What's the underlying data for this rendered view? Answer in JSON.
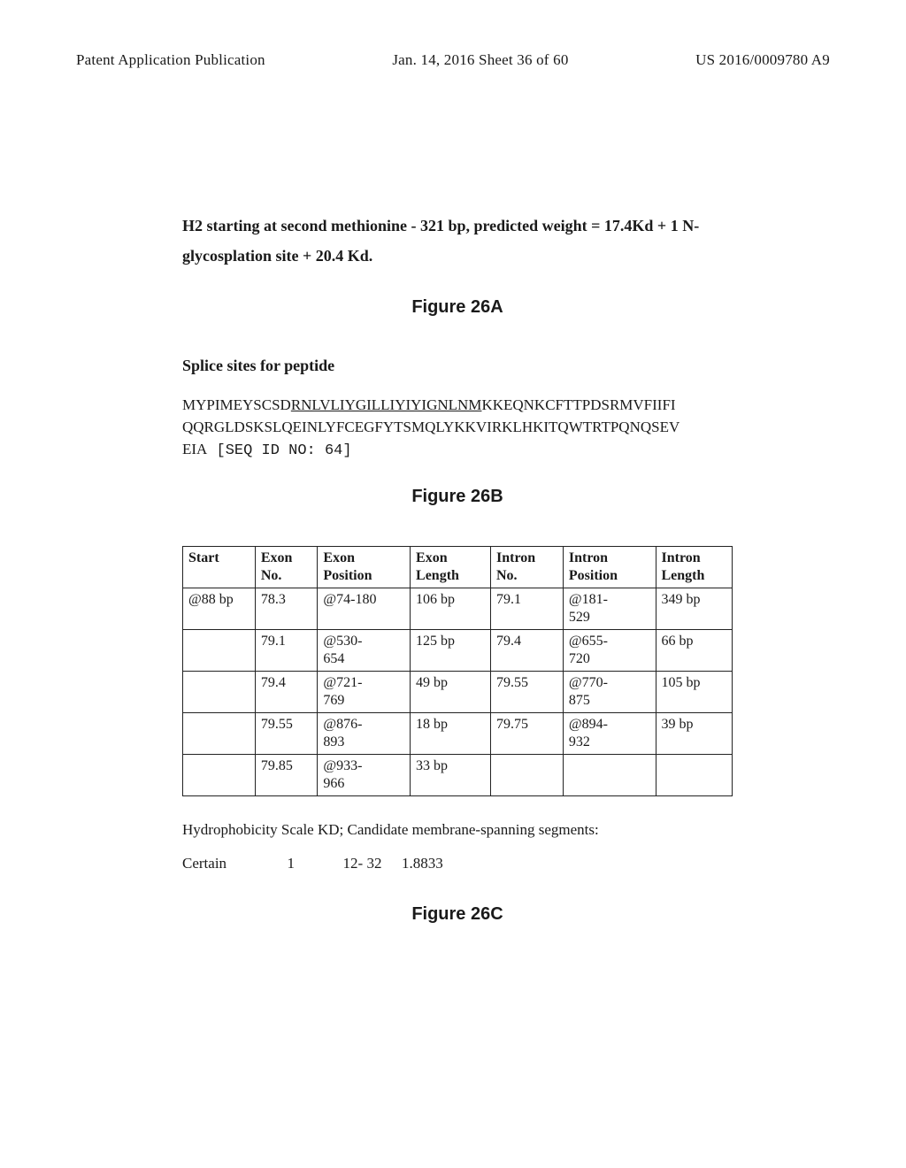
{
  "header": {
    "left": "Patent Application Publication",
    "center": "Jan. 14, 2016  Sheet 36 of 60",
    "right": "US 2016/0009780 A9"
  },
  "h2": {
    "line1": "H2 starting at second methionine - 321 bp, predicted weight = 17.4Kd + 1 N-",
    "line2": "glycosplation site + 20.4 Kd."
  },
  "figA_title": "Figure 26A",
  "splice_heading": "Splice sites for peptide",
  "sequence": {
    "p1": "MYPIMEYSCSD",
    "u": "RNLVLIYGILLIYIYIGNLNM",
    "p2": "KKEQNKCFTTPDSRMVFIIFI",
    "line2": "QQRGLDSKSLQEINLYFCEGFYTSMQLYKKVIRKLHKITQWTRTPQNQSEV",
    "line3a": "EIA",
    "line3b": " [SEQ ID NO: 64]"
  },
  "figB_title": "Figure 26B",
  "table": {
    "headers": [
      [
        "Start",
        ""
      ],
      [
        "Exon",
        "No."
      ],
      [
        "Exon",
        "Position"
      ],
      [
        "Exon",
        "Length"
      ],
      [
        "Intron",
        "No."
      ],
      [
        "Intron",
        "Position"
      ],
      [
        "Intron",
        "Length"
      ]
    ],
    "rows": [
      [
        "@88 bp",
        "78.3",
        "@74-180",
        "106 bp",
        "79.1",
        "@181-\n529",
        "349 bp"
      ],
      [
        "",
        "79.1",
        "@530-\n654",
        "125 bp",
        "79.4",
        "@655-\n720",
        "66 bp"
      ],
      [
        "",
        "79.4",
        "@721-\n769",
        "49 bp",
        "79.55",
        "@770-\n875",
        "105 bp"
      ],
      [
        "",
        "79.55",
        "@876-\n893",
        "18 bp",
        "79.75",
        "@894-\n932",
        "39 bp"
      ],
      [
        "",
        "79.85",
        "@933-\n966",
        "33 bp",
        "",
        "",
        ""
      ]
    ],
    "col_widths": [
      "72px",
      "62px",
      "92px",
      "80px",
      "72px",
      "92px",
      "76px"
    ]
  },
  "hydro": "Hydrophobicity Scale KD; Candidate membrane-spanning segments:",
  "certain": {
    "label": "Certain",
    "col1": "1",
    "col2": "12-  32",
    "col3": "1.8833"
  },
  "figC_title": "Figure 26C",
  "colors": {
    "text": "#1a1a1a",
    "border": "#222222",
    "bg": "#ffffff"
  },
  "fonts": {
    "body": "Times New Roman",
    "fig_title": "Arial",
    "mono": "Courier New"
  }
}
